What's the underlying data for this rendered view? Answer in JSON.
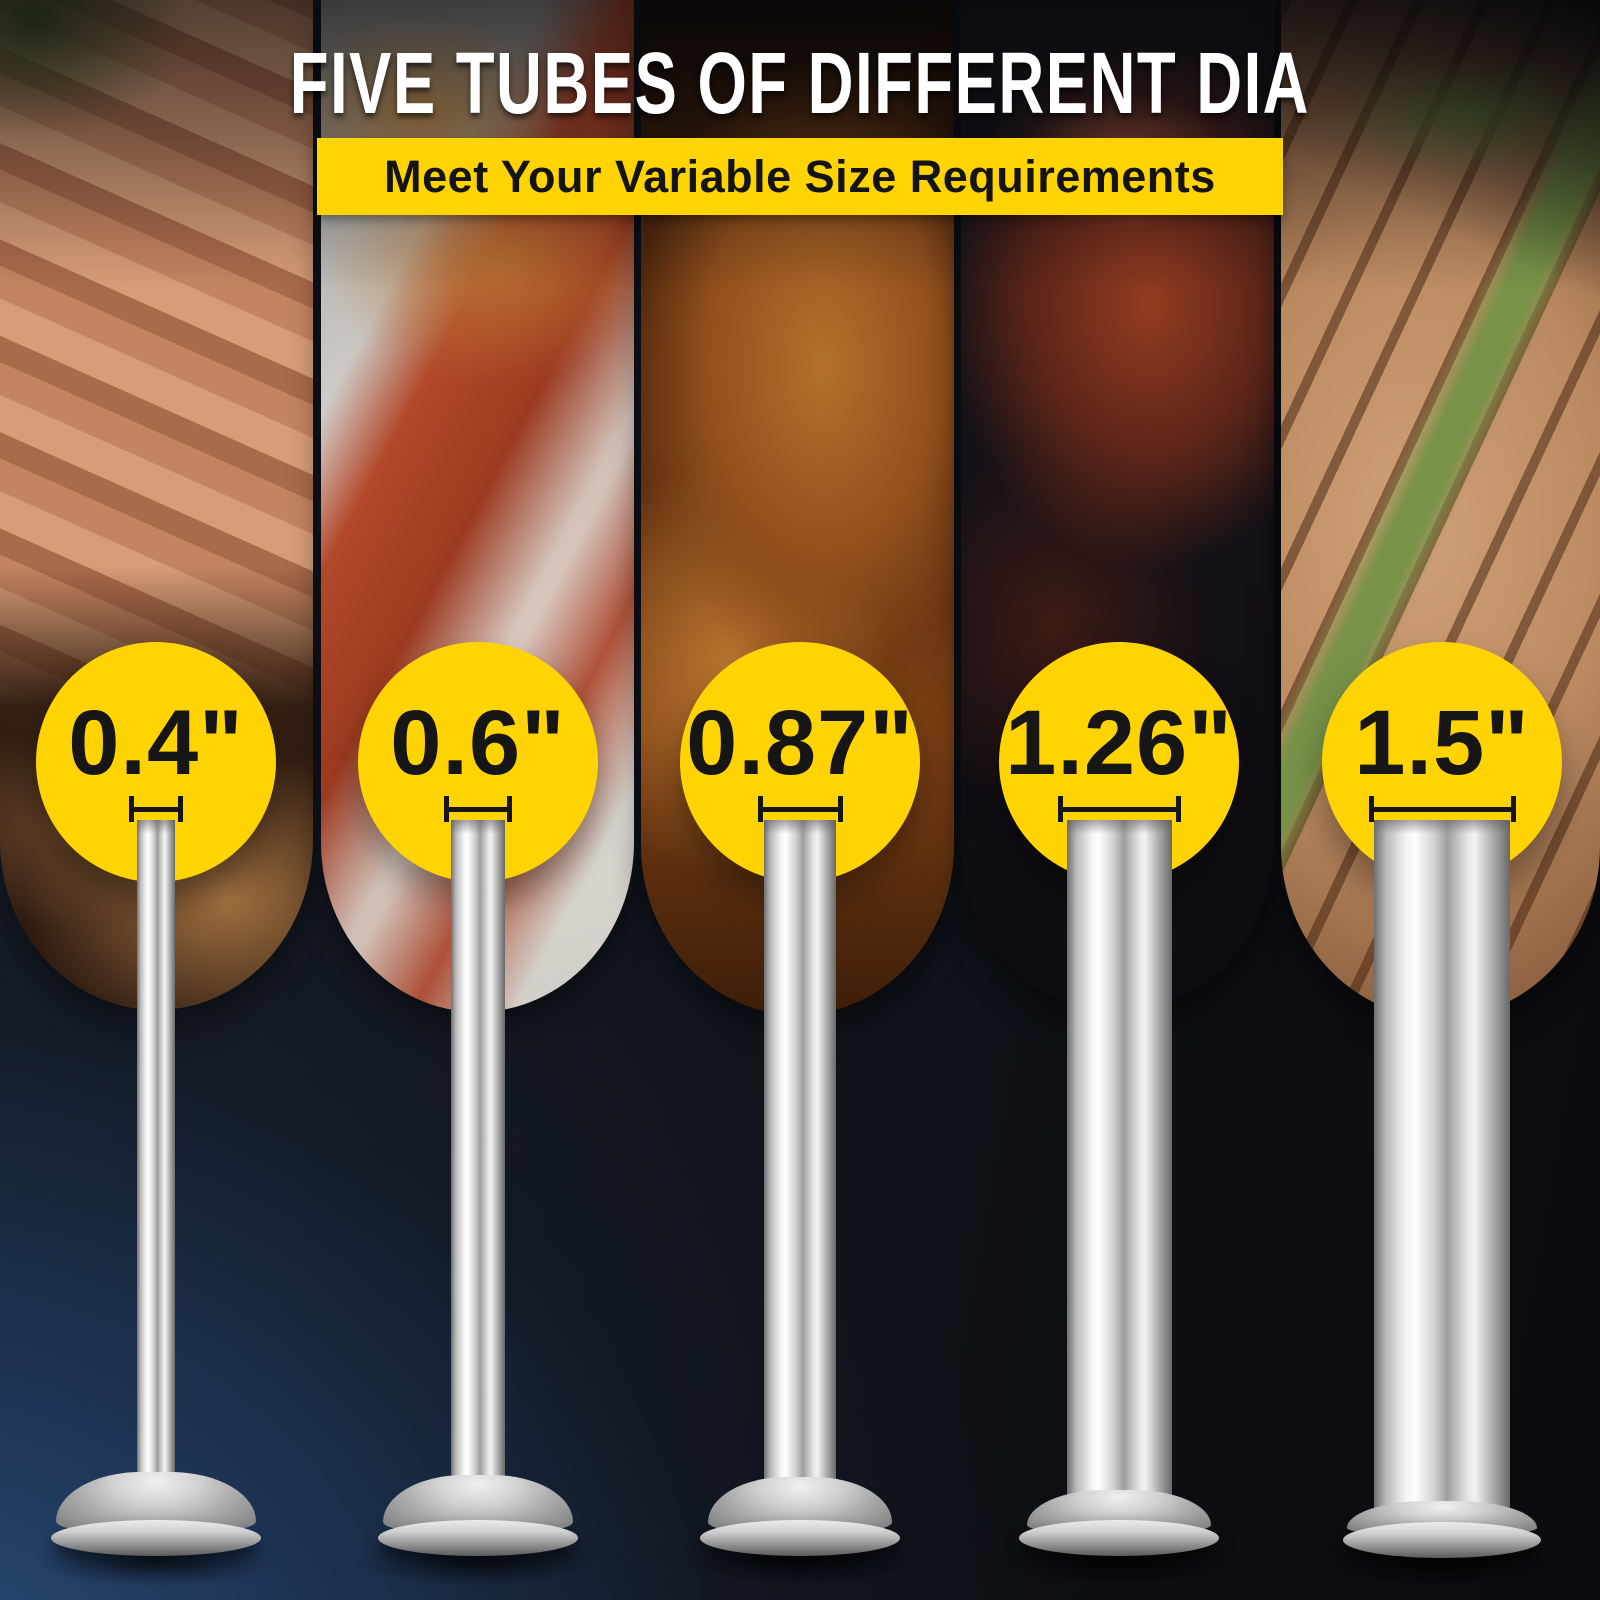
{
  "header": {
    "title": "FIVE TUBES OF DIFFERENT DIA",
    "subtitle": "Meet Your Variable Size Requirements"
  },
  "colors": {
    "accent_yellow": "#FFD402",
    "accent_white": "#FFFFFF",
    "subtitle_text": "#141414",
    "label_text": "#161616",
    "background_navy": "#24466B",
    "background_black": "#0B0D10",
    "steel_highlight": "#F3F3F3",
    "steel_shadow": "#696969"
  },
  "tubes": [
    {
      "diameter_label": "0.4\"",
      "photo_description": "fresh frankfurter sausages on dark wood with crumpled paper"
    },
    {
      "diameter_label": "0.6\"",
      "photo_description": "grilled red sausages with roasted potatoes on a white plate"
    },
    {
      "diameter_label": "0.87\"",
      "photo_description": "browned sausages cooking on a barbecue grill"
    },
    {
      "diameter_label": "1.26\"",
      "photo_description": "glossy smoked sausage ring in a dark pan"
    },
    {
      "diameter_label": "1.5\"",
      "photo_description": "grilled bratwurst garnished with green onion"
    }
  ]
}
